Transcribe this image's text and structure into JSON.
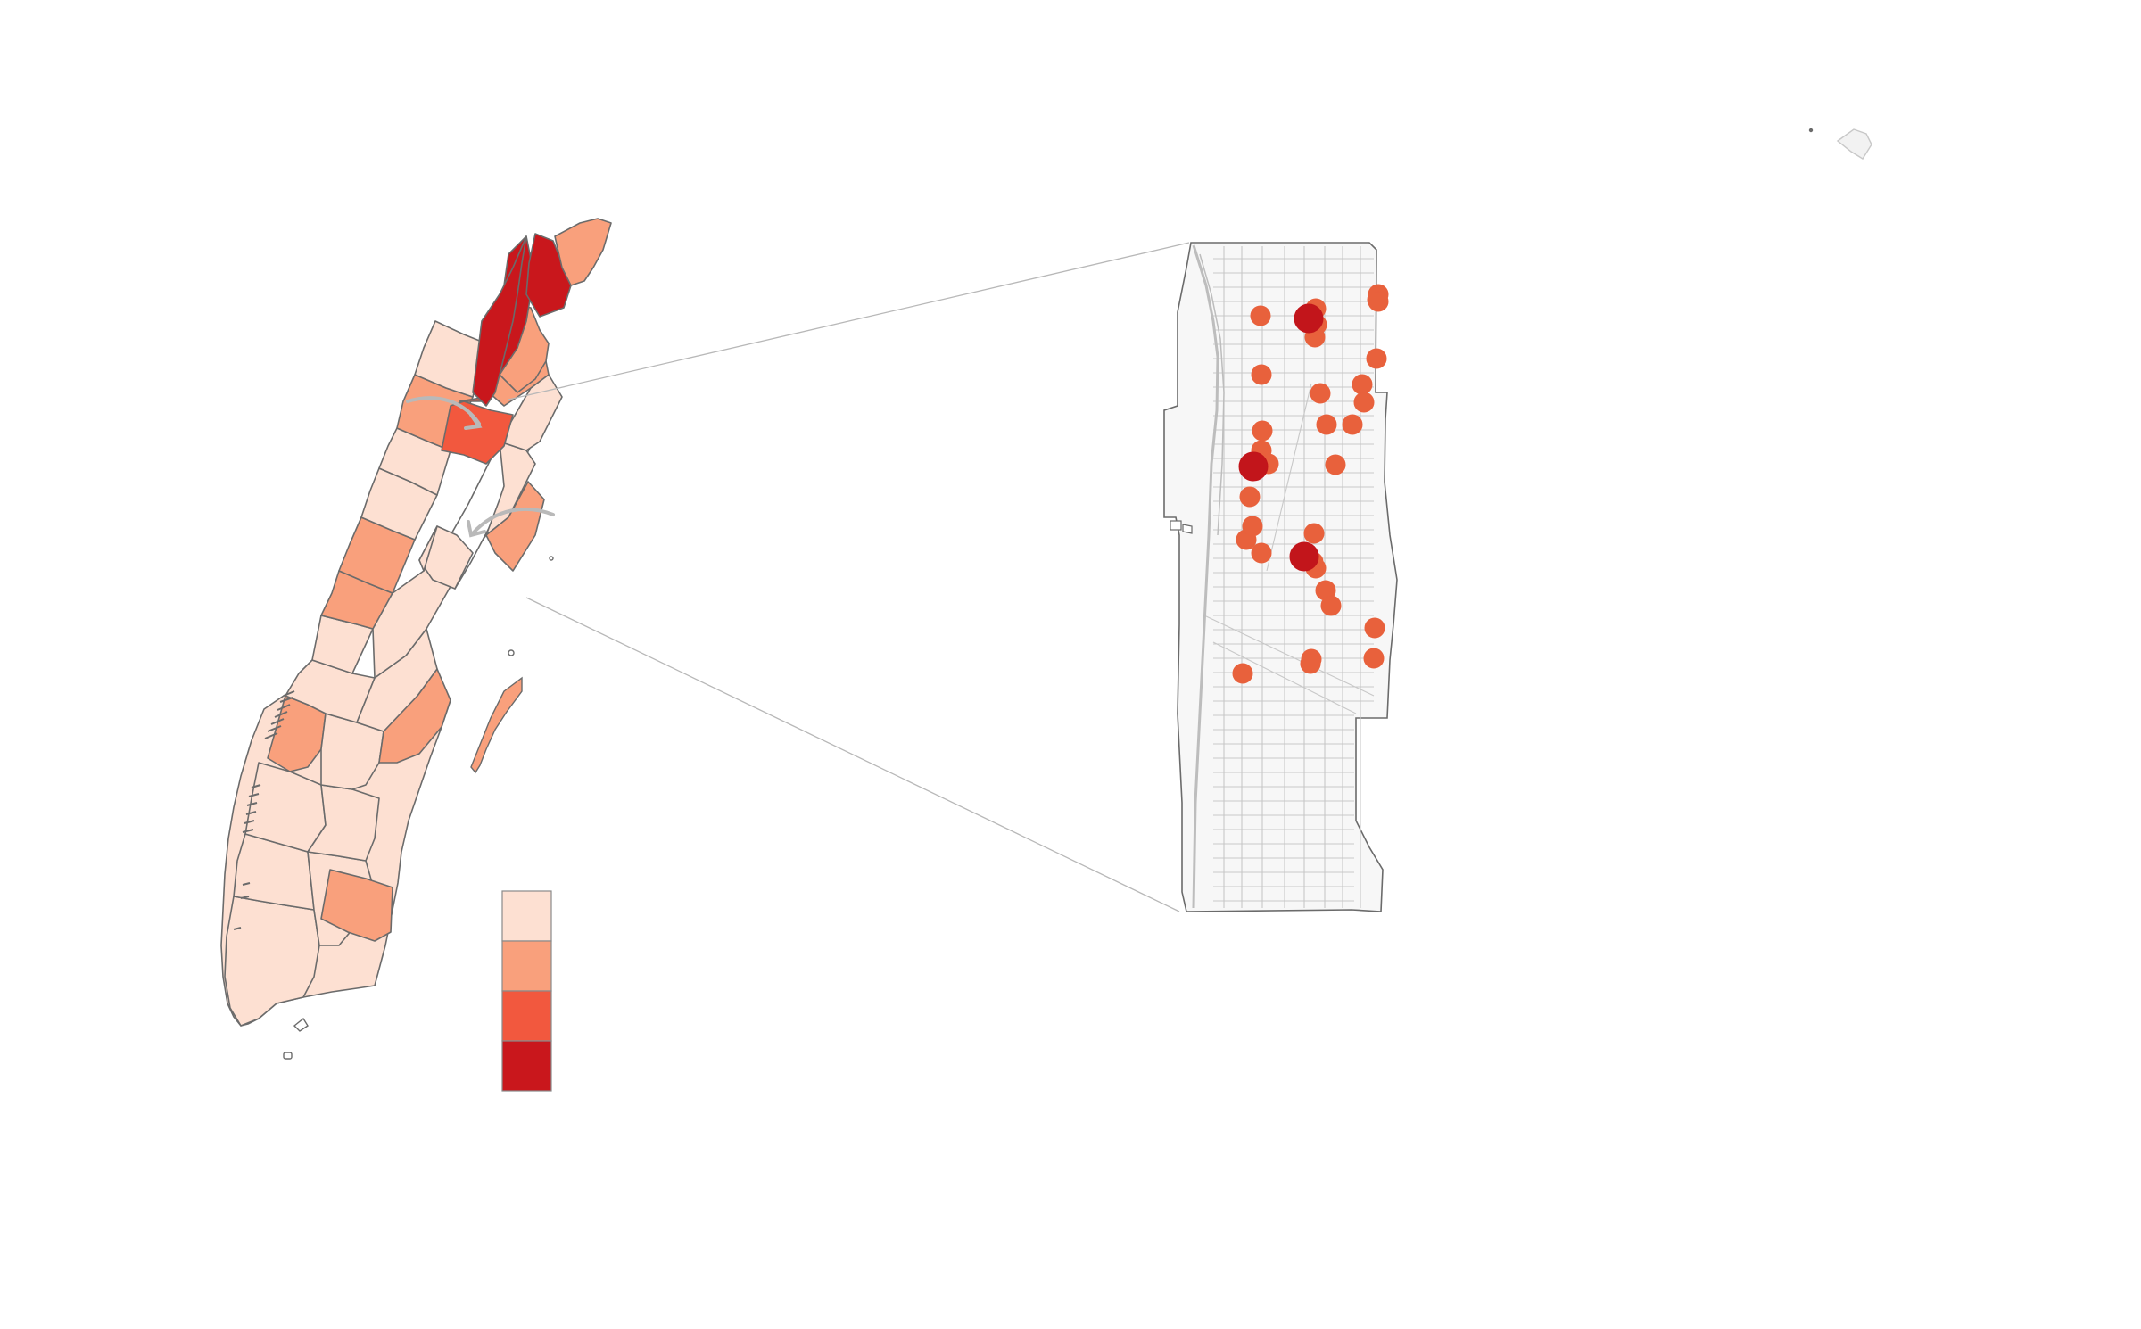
{
  "colors": {
    "background": "#ffffff",
    "outline": "#6b6b6b",
    "street": "#c8c8c8",
    "inset_fill": "#f7f7f7",
    "callout_line": "#b8b8b8",
    "arrow": "#b9b9b9",
    "scale": [
      "#fde0d2",
      "#f9a07c",
      "#f2583e",
      "#c9171c"
    ],
    "dot": "#e8613c",
    "dot_large": "#c2151b"
  },
  "legend": {
    "swatches": 4,
    "labels": []
  },
  "map": {
    "region": "Manhattan",
    "choropleth_classes": 4,
    "inset_points": [
      {
        "level": "large"
      },
      {
        "level": "large"
      },
      {
        "level": "large"
      }
    ],
    "inset_point_count_small": 33
  }
}
